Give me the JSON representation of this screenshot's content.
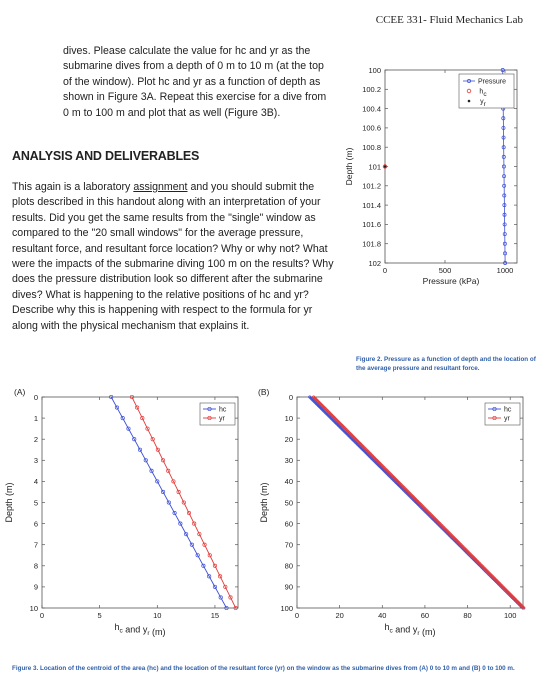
{
  "header": {
    "title": "CCEE 331- Fluid Mechanics Lab"
  },
  "intro": {
    "text": "dives. Please calculate the value for hc and yr as the submarine dives from a depth of 0 m to 10 m (at the top of the window). Plot hc and yr as a function of depth as shown in Figure 3A. Repeat this exercise for a dive from 0 m to 100 m and plot that as well (Figure 3B)."
  },
  "section": {
    "title": "ANALYSIS AND DELIVERABLES"
  },
  "deliverables": {
    "text_before": "This again is a laboratory ",
    "underlined": "assignment",
    "text_after": " and you should submit the plots described in this handout along with an interpretation of your results. Did you get the same results from the \"single\" window as compared to the \"20 small windows\" for the average pressure, resultant force, and resultant force location? Why or why not? What were the impacts of the submarine diving 100 m on the results? Why does the pressure distribution look so different after the submarine dives? What is happening to the relative positions of hc and yr? Describe why this is happening with respect to the formula for yr along with the physical mechanism that explains it."
  },
  "figure2": {
    "caption": "Figure 2. Pressure as a function of depth and the location of the average pressure and resultant force.",
    "chart_data": {
      "type": "scatter",
      "xlabel": "Pressure (kPa)",
      "ylabel": "Depth (m)",
      "xlim": [
        0,
        1100
      ],
      "ylim": [
        100,
        102
      ],
      "y_reversed": true,
      "x_ticks": [
        "0",
        "500",
        "1000"
      ],
      "y_ticks": [
        "100",
        "100.2",
        "100.4",
        "100.6",
        "100.8",
        "101",
        "101.2",
        "101.4",
        "101.6",
        "101.8",
        "102"
      ],
      "legend": [
        "Pressure",
        "hc",
        "yr"
      ],
      "legend_placement": "top-right",
      "series": [
        {
          "name": "Pressure",
          "style": "line-circle",
          "color": "#3d4fd6",
          "x": [
            981,
            982,
            983,
            984,
            985,
            986,
            987,
            988,
            989,
            990,
            991,
            992,
            993,
            994,
            995,
            996,
            997,
            998,
            999,
            1000,
            1001
          ],
          "y": [
            100,
            100.1,
            100.2,
            100.3,
            100.4,
            100.5,
            100.6,
            100.7,
            100.8,
            100.9,
            101,
            101.1,
            101.2,
            101.3,
            101.4,
            101.5,
            101.6,
            101.7,
            101.8,
            101.9,
            102
          ]
        },
        {
          "name": "hc",
          "style": "circle",
          "color": "#e23b3b",
          "x": [
            0
          ],
          "y": [
            101
          ]
        },
        {
          "name": "yr",
          "style": "dot",
          "color": "#222222",
          "x": [
            0
          ],
          "y": [
            101
          ]
        }
      ]
    }
  },
  "figure3": {
    "caption": "Figure 3. Location of the centroid of the area (hc) and the location of the resultant force (yr) on the window as the submarine dives from (A) 0 to 10 m and (B) 0 to 100 m.",
    "panelA": {
      "label": "(A)",
      "chart_data": {
        "type": "line",
        "xlabel": "hc and yr (m)",
        "ylabel": "Depth (m)",
        "xlim": [
          0,
          17
        ],
        "ylim": [
          0,
          10
        ],
        "y_reversed": true,
        "x_ticks": [
          "0",
          "5",
          "10",
          "15"
        ],
        "y_ticks": [
          "0",
          "1",
          "2",
          "3",
          "4",
          "5",
          "6",
          "7",
          "8",
          "9",
          "10"
        ],
        "legend": [
          "hc",
          "yr"
        ],
        "legend_placement": "top-right",
        "series": [
          {
            "name": "hc",
            "color": "#3d4fd6",
            "x": [
              6,
              6.5,
              7,
              7.5,
              8,
              8.5,
              9,
              9.5,
              10,
              10.5,
              11,
              11.5,
              12,
              12.5,
              13,
              13.5,
              14,
              14.5,
              15,
              15.5,
              16
            ],
            "y": [
              0,
              0.5,
              1,
              1.5,
              2,
              2.5,
              3,
              3.5,
              4,
              4.5,
              5,
              5.5,
              6,
              6.5,
              7,
              7.5,
              8,
              8.5,
              9,
              9.5,
              10
            ]
          },
          {
            "name": "yr",
            "color": "#e23b3b",
            "x": [
              7.8,
              8.25,
              8.7,
              9.15,
              9.6,
              10.05,
              10.5,
              10.95,
              11.4,
              11.85,
              12.3,
              12.75,
              13.2,
              13.65,
              14.1,
              14.55,
              15,
              15.45,
              15.9,
              16.35,
              16.8
            ],
            "y": [
              0,
              0.5,
              1,
              1.5,
              2,
              2.5,
              3,
              3.5,
              4,
              4.5,
              5,
              5.5,
              6,
              6.5,
              7,
              7.5,
              8,
              8.5,
              9,
              9.5,
              10
            ]
          }
        ]
      }
    },
    "panelB": {
      "label": "(B)",
      "chart_data": {
        "type": "line",
        "xlabel": "hc and yr (m)",
        "ylabel": "Depth (m)",
        "xlim": [
          0,
          106
        ],
        "ylim": [
          0,
          100
        ],
        "y_reversed": true,
        "x_ticks": [
          "0",
          "20",
          "40",
          "60",
          "80",
          "100"
        ],
        "y_ticks": [
          "0",
          "10",
          "20",
          "30",
          "40",
          "50",
          "60",
          "70",
          "80",
          "90",
          "100"
        ],
        "legend": [
          "hc",
          "yr"
        ],
        "legend_placement": "top-right",
        "series": [
          {
            "name": "hc",
            "color": "#3d4fd6",
            "x_start": 6,
            "x_end": 106,
            "y_start": 0,
            "y_end": 100,
            "n_points": 201
          },
          {
            "name": "yr",
            "color": "#e23b3b",
            "x_start": 7.8,
            "x_end": 106.4,
            "y_start": 0,
            "y_end": 100,
            "n_points": 201
          }
        ]
      }
    }
  }
}
